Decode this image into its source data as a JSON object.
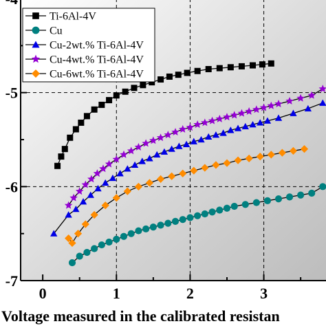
{
  "chart_data": {
    "type": "scatter",
    "xlabel": "Voltage measured in the calibrated resistan",
    "ylabel": "",
    "xlim": [
      -0.3,
      3.9
    ],
    "ylim": [
      -7,
      -4
    ],
    "x_ticks": [
      "0",
      "1",
      "2",
      "3"
    ],
    "y_ticks": [
      "-4",
      "-5",
      "-6",
      "-7"
    ],
    "grid": true,
    "legend_position": "top-left",
    "series": [
      {
        "name": "Ti-6Al-4V",
        "marker": "square",
        "color": "#000000",
        "x": [
          0.2,
          0.25,
          0.3,
          0.37,
          0.45,
          0.52,
          0.6,
          0.7,
          0.8,
          0.9,
          1.0,
          1.12,
          1.24,
          1.36,
          1.48,
          1.6,
          1.72,
          1.84,
          1.96,
          2.1,
          2.25,
          2.4,
          2.55,
          2.7,
          2.85,
          2.98,
          3.1
        ],
        "y": [
          -5.78,
          -5.68,
          -5.6,
          -5.48,
          -5.39,
          -5.32,
          -5.25,
          -5.18,
          -5.13,
          -5.08,
          -5.03,
          -4.99,
          -4.95,
          -4.92,
          -4.89,
          -4.86,
          -4.83,
          -4.81,
          -4.79,
          -4.77,
          -4.75,
          -4.74,
          -4.73,
          -4.72,
          -4.71,
          -4.7,
          -4.69
        ]
      },
      {
        "name": "Cu",
        "marker": "circle",
        "color": "#008080",
        "x": [
          0.4,
          0.5,
          0.6,
          0.7,
          0.8,
          0.9,
          1.0,
          1.1,
          1.2,
          1.3,
          1.4,
          1.5,
          1.6,
          1.7,
          1.8,
          1.9,
          2.0,
          2.1,
          2.2,
          2.3,
          2.4,
          2.5,
          2.6,
          2.75,
          2.9,
          3.05,
          3.2,
          3.35,
          3.5,
          3.65,
          3.8
        ],
        "y": [
          -6.81,
          -6.74,
          -6.7,
          -6.66,
          -6.62,
          -6.59,
          -6.56,
          -6.53,
          -6.5,
          -6.47,
          -6.45,
          -6.43,
          -6.41,
          -6.39,
          -6.37,
          -6.35,
          -6.33,
          -6.31,
          -6.29,
          -6.27,
          -6.25,
          -6.23,
          -6.21,
          -6.19,
          -6.17,
          -6.15,
          -6.13,
          -6.11,
          -6.09,
          -6.07,
          -6.0
        ]
      },
      {
        "name": "Cu-2wt.% Ti-6Al-4V",
        "marker": "triangle",
        "color": "#0000e6",
        "x": [
          0.15,
          0.35,
          0.45,
          0.55,
          0.65,
          0.75,
          0.85,
          0.95,
          1.05,
          1.15,
          1.25,
          1.35,
          1.45,
          1.55,
          1.65,
          1.75,
          1.85,
          1.95,
          2.05,
          2.15,
          2.25,
          2.35,
          2.45,
          2.55,
          2.65,
          2.75,
          2.85,
          2.95,
          3.05,
          3.2,
          3.4,
          3.6,
          3.8
        ],
        "y": [
          -6.5,
          -6.3,
          -6.24,
          -6.16,
          -6.09,
          -6.02,
          -5.96,
          -5.91,
          -5.86,
          -5.81,
          -5.77,
          -5.73,
          -5.7,
          -5.66,
          -5.63,
          -5.6,
          -5.57,
          -5.55,
          -5.52,
          -5.5,
          -5.47,
          -5.45,
          -5.43,
          -5.4,
          -5.38,
          -5.36,
          -5.34,
          -5.32,
          -5.3,
          -5.27,
          -5.22,
          -5.17,
          -5.11
        ]
      },
      {
        "name": "Cu-4wt.% Ti-6Al-4V",
        "marker": "star",
        "color": "#9400d3",
        "x": [
          0.35,
          0.42,
          0.5,
          0.58,
          0.66,
          0.74,
          0.82,
          0.9,
          1.0,
          1.1,
          1.2,
          1.3,
          1.4,
          1.5,
          1.6,
          1.7,
          1.8,
          1.9,
          2.0,
          2.1,
          2.2,
          2.3,
          2.4,
          2.5,
          2.6,
          2.7,
          2.8,
          2.9,
          3.0,
          3.1,
          3.2,
          3.35,
          3.5,
          3.65,
          3.8
        ],
        "y": [
          -6.2,
          -6.12,
          -6.05,
          -5.98,
          -5.92,
          -5.86,
          -5.81,
          -5.76,
          -5.71,
          -5.66,
          -5.62,
          -5.58,
          -5.54,
          -5.51,
          -5.48,
          -5.45,
          -5.42,
          -5.39,
          -5.37,
          -5.34,
          -5.32,
          -5.3,
          -5.28,
          -5.26,
          -5.24,
          -5.22,
          -5.2,
          -5.18,
          -5.16,
          -5.14,
          -5.12,
          -5.09,
          -5.06,
          -5.03,
          -4.96
        ]
      },
      {
        "name": "Cu-6wt.% Ti-6Al-4V",
        "marker": "diamond",
        "color": "#ff8c00",
        "x": [
          0.35,
          0.4,
          0.48,
          0.58,
          0.7,
          0.85,
          1.0,
          1.15,
          1.3,
          1.45,
          1.6,
          1.75,
          1.9,
          2.05,
          2.2,
          2.35,
          2.5,
          2.65,
          2.8,
          2.95,
          3.1,
          3.25,
          3.4,
          3.55
        ],
        "y": [
          -6.55,
          -6.6,
          -6.5,
          -6.4,
          -6.3,
          -6.2,
          -6.12,
          -6.05,
          -6.0,
          -5.96,
          -5.92,
          -5.89,
          -5.86,
          -5.83,
          -5.8,
          -5.77,
          -5.75,
          -5.72,
          -5.7,
          -5.68,
          -5.66,
          -5.64,
          -5.62,
          -5.6
        ]
      }
    ]
  }
}
